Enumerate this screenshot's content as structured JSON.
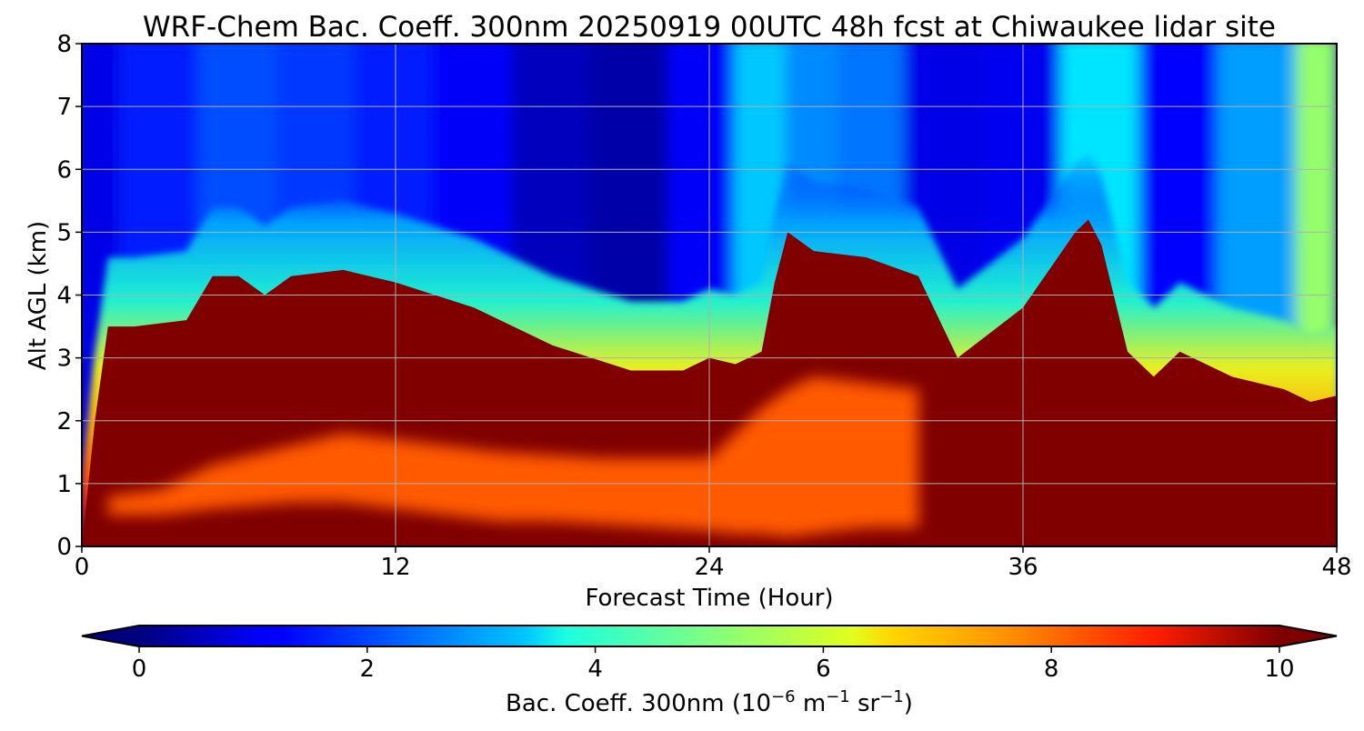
{
  "chart_data": {
    "type": "heatmap",
    "title": "WRF-Chem Bac. Coeff. 300nm  20250919 00UTC 48h fcst at Chiwaukee lidar site",
    "xlabel": "Forecast Time (Hour)",
    "ylabel": "Alt AGL (km)",
    "xlim": [
      0,
      48
    ],
    "ylim": [
      0,
      8
    ],
    "xticks": [
      "0",
      "12",
      "24",
      "36",
      "48"
    ],
    "yticks": [
      "0",
      "1",
      "2",
      "3",
      "4",
      "5",
      "6",
      "7",
      "8"
    ],
    "grid": true,
    "colormap": "jet",
    "colorbar": {
      "label_main": "Bac. Coeff. 300nm  (10",
      "exp1": "−6",
      "label_mid": " m",
      "exp2": "−1",
      "label_mid2": " sr",
      "exp3": "−1",
      "label_end": ")",
      "range": [
        0,
        10
      ],
      "ticks": [
        "0",
        "2",
        "4",
        "6",
        "8",
        "10"
      ],
      "extend": "both"
    },
    "layer_top_km": {
      "hours": [
        0,
        0.5,
        1,
        2,
        4,
        5,
        6,
        7,
        8,
        10,
        12,
        15,
        18,
        21,
        23,
        24,
        25,
        26,
        26.5,
        27,
        28,
        30,
        32,
        33.5,
        36,
        38,
        38.5,
        39,
        40,
        41,
        42,
        44,
        46,
        47,
        48
      ],
      "top": [
        0.0,
        2.0,
        3.5,
        3.5,
        3.6,
        4.3,
        4.3,
        4.0,
        4.3,
        4.4,
        4.2,
        3.8,
        3.2,
        2.8,
        2.8,
        3.0,
        2.9,
        3.1,
        4.2,
        5.0,
        4.7,
        4.6,
        4.3,
        3.0,
        3.8,
        5.0,
        5.2,
        4.8,
        3.1,
        2.7,
        3.1,
        2.7,
        2.5,
        2.3,
        2.4
      ]
    },
    "enhanced_band_km": {
      "hours": [
        1,
        3,
        5,
        8,
        10,
        12,
        14,
        16,
        18,
        20,
        22,
        24,
        25,
        26,
        27,
        28,
        30,
        32
      ],
      "bottom": [
        0.5,
        0.5,
        0.6,
        0.7,
        0.7,
        0.6,
        0.5,
        0.4,
        0.4,
        0.35,
        0.3,
        0.25,
        0.2,
        0.2,
        0.15,
        0.2,
        0.3,
        0.3
      ],
      "top": [
        0.8,
        0.9,
        1.3,
        1.6,
        1.8,
        1.7,
        1.6,
        1.5,
        1.45,
        1.4,
        1.4,
        1.4,
        1.8,
        2.2,
        2.5,
        2.7,
        2.6,
        2.5
      ],
      "value": [
        7.2,
        7.4,
        7.3,
        7.5,
        7.6,
        7.8,
        8.2,
        8.4,
        8.6,
        8.7,
        8.6,
        8.5,
        8.0,
        7.6,
        7.5,
        7.4,
        7.6,
        7.8
      ]
    },
    "upper_air_value_by_hour": {
      "hours": [
        0,
        3,
        6,
        9,
        12,
        15,
        18,
        21,
        24,
        26,
        28,
        30,
        33,
        36,
        39,
        42,
        45,
        48
      ],
      "value": [
        1.0,
        1.5,
        2.0,
        1.8,
        1.5,
        1.2,
        0.6,
        0.4,
        1.2,
        3.2,
        2.6,
        2.4,
        1.0,
        1.1,
        3.5,
        1.3,
        2.8,
        5.2
      ]
    }
  }
}
